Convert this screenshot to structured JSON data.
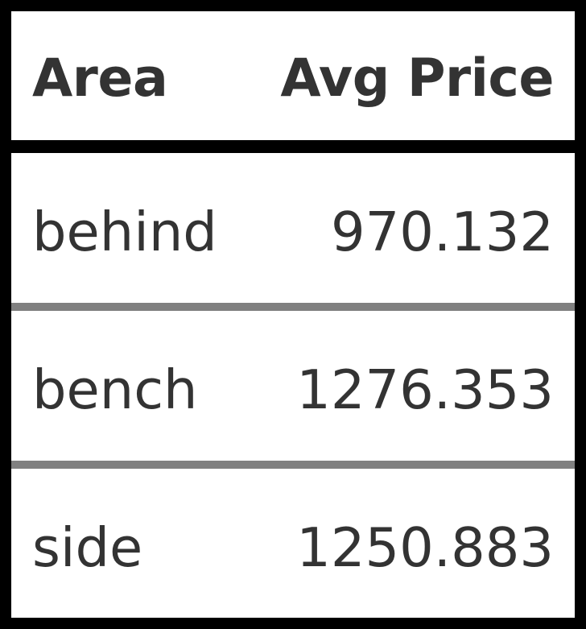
{
  "chart_data": {
    "type": "table",
    "columns": [
      "Area",
      "Avg Price"
    ],
    "rows": [
      {
        "area": "behind",
        "avg_price": "970.132"
      },
      {
        "area": "bench",
        "avg_price": "1276.353"
      },
      {
        "area": "side",
        "avg_price": "1250.883"
      }
    ]
  },
  "colors": {
    "border": "#000000",
    "divider": "#808080",
    "text": "#333333",
    "cell_background": "#ffffff"
  }
}
